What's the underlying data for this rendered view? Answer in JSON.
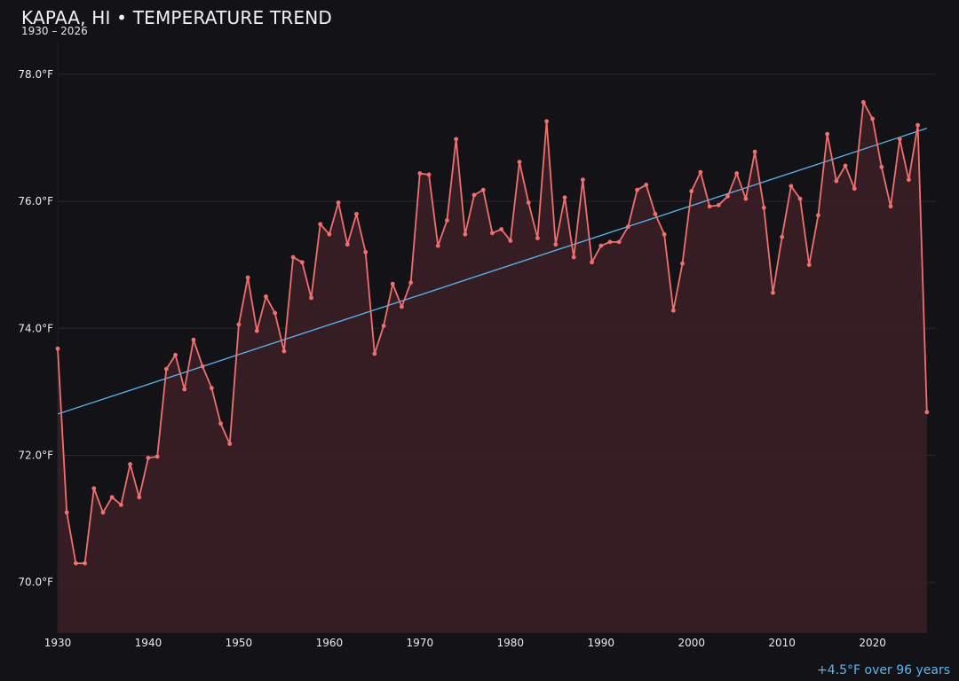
{
  "chart_data": {
    "type": "line",
    "title": "KAPAA, HI • TEMPERATURE TREND",
    "subtitle": "1930 – 2026",
    "xlabel": "",
    "ylabel": "",
    "xlim": [
      1930,
      2027
    ],
    "ylim": [
      69.2,
      78.5
    ],
    "x_ticks": [
      1930,
      1940,
      1950,
      1960,
      1970,
      1980,
      1990,
      2000,
      2010,
      2020
    ],
    "y_ticks": [
      70.0,
      72.0,
      74.0,
      76.0,
      78.0
    ],
    "y_tick_labels": [
      "70.0°F",
      "72.0°F",
      "74.0°F",
      "76.0°F",
      "78.0°F"
    ],
    "grid": true,
    "series": [
      {
        "color": "#f07070",
        "fill": true,
        "x": [
          1930,
          1931,
          1932,
          1933,
          1934,
          1935,
          1936,
          1937,
          1938,
          1939,
          1940,
          1941,
          1942,
          1943,
          1944,
          1945,
          1946,
          1947,
          1948,
          1949,
          1950,
          1951,
          1952,
          1953,
          1954,
          1955,
          1956,
          1957,
          1958,
          1959,
          1960,
          1961,
          1962,
          1963,
          1964,
          1965,
          1966,
          1967,
          1968,
          1969,
          1970,
          1971,
          1972,
          1973,
          1974,
          1975,
          1976,
          1977,
          1978,
          1979,
          1980,
          1981,
          1982,
          1983,
          1984,
          1985,
          1986,
          1987,
          1988,
          1989,
          1990,
          1991,
          1992,
          1993,
          1994,
          1995,
          1996,
          1997,
          1998,
          1999,
          2000,
          2001,
          2002,
          2003,
          2004,
          2005,
          2006,
          2007,
          2008,
          2009,
          2010,
          2011,
          2012,
          2013,
          2014,
          2015,
          2016,
          2017,
          2018,
          2019,
          2020,
          2021,
          2022,
          2023,
          2024,
          2025,
          2026
        ],
        "values": [
          73.68,
          71.1,
          70.3,
          70.3,
          71.48,
          71.1,
          71.34,
          71.22,
          71.86,
          71.34,
          71.96,
          71.98,
          73.36,
          73.58,
          73.04,
          73.82,
          73.4,
          73.06,
          72.5,
          72.18,
          74.06,
          74.8,
          73.96,
          74.5,
          74.24,
          73.64,
          75.12,
          75.04,
          74.48,
          75.64,
          75.48,
          75.98,
          75.32,
          75.8,
          75.2,
          73.6,
          74.04,
          74.7,
          74.34,
          74.72,
          76.44,
          76.42,
          75.3,
          75.7,
          76.98,
          75.48,
          76.1,
          76.18,
          75.5,
          75.56,
          75.38,
          76.62,
          75.98,
          75.42,
          77.26,
          75.32,
          76.06,
          75.12,
          76.34,
          75.04,
          75.3,
          75.36,
          75.36,
          75.6,
          76.18,
          76.26,
          75.8,
          75.48,
          74.28,
          75.02,
          76.16,
          76.46,
          75.92,
          75.94,
          76.08,
          76.44,
          76.04,
          76.78,
          75.9,
          74.56,
          75.44,
          76.24,
          76.04,
          75.0,
          75.78,
          77.06,
          76.32,
          76.56,
          76.2,
          77.56,
          77.3,
          76.54,
          75.92,
          76.98,
          76.34,
          77.2,
          72.68
        ]
      },
      {
        "type": "trend-line",
        "color": "#5bb7f0",
        "x": [
          1930,
          2026
        ],
        "values": [
          72.65,
          77.15
        ]
      }
    ],
    "annotation": "+4.5°F over 96 years"
  }
}
